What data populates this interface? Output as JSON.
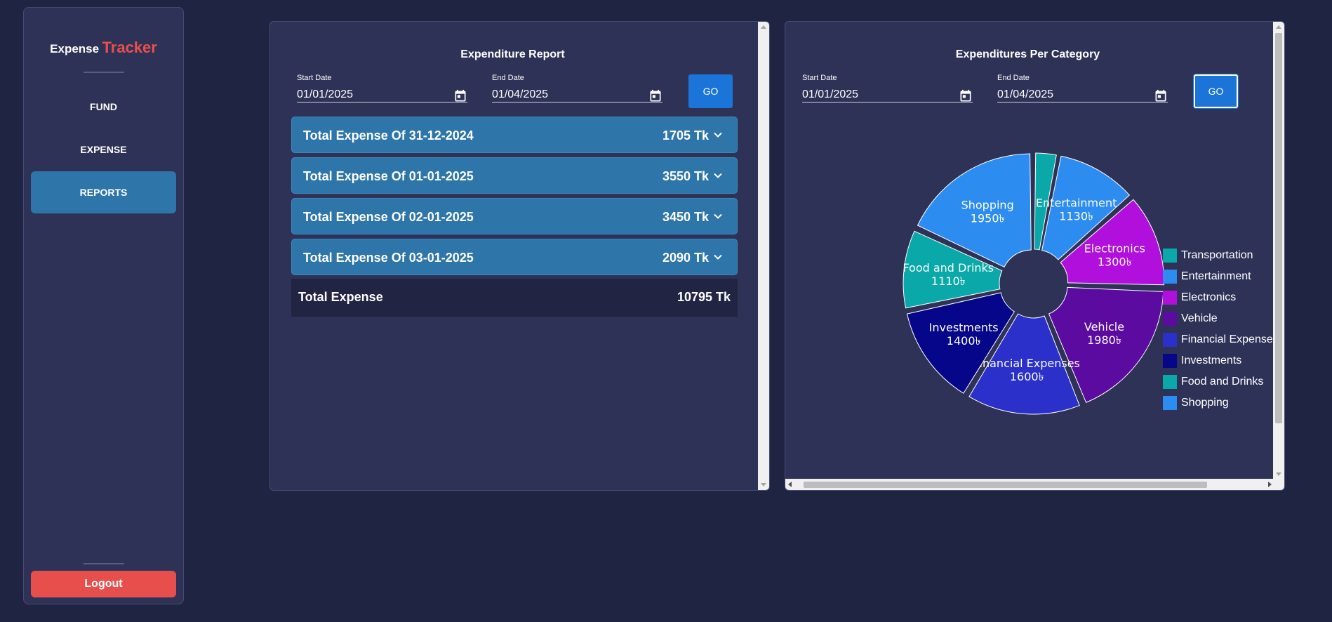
{
  "sidebar": {
    "brand_part1": "Expense",
    "brand_part2": "Tracker",
    "items": [
      {
        "label": "FUND"
      },
      {
        "label": "EXPENSE"
      },
      {
        "label": "REPORTS"
      }
    ],
    "active": "REPORTS",
    "logout_label": "Logout"
  },
  "report": {
    "title": "Expenditure Report",
    "start_label": "Start Date",
    "start_value": "01/01/2025",
    "end_label": "End Date",
    "end_value": "01/04/2025",
    "go_label": "GO",
    "rows": [
      {
        "title": "Total Expense Of 31-12-2024",
        "amount": "1705 Tk"
      },
      {
        "title": "Total Expense Of 01-01-2025",
        "amount": "3550 Tk"
      },
      {
        "title": "Total Expense Of 02-01-2025",
        "amount": "3450 Tk"
      },
      {
        "title": "Total Expense Of 03-01-2025",
        "amount": "2090 Tk"
      }
    ],
    "total_label": "Total Expense",
    "total_value": "10795 Tk"
  },
  "category": {
    "title": "Expenditures Per Category",
    "start_label": "Start Date",
    "start_value": "01/01/2025",
    "end_label": "End Date",
    "end_value": "01/04/2025",
    "go_label": "GO"
  },
  "chart_data": {
    "type": "pie",
    "variant": "doughnut",
    "currency_symbol": "৳",
    "categories": [
      "Transportation",
      "Entertainment",
      "Electronics",
      "Vehicle",
      "Financial Expenses",
      "Investments",
      "Food and Drinks",
      "Shopping"
    ],
    "values": [
      325,
      1130,
      1300,
      1980,
      1600,
      1400,
      1110,
      1950
    ],
    "slice_labels": [
      null,
      "1130৳",
      "1300৳",
      "1980৳",
      "1600৳",
      "1400৳",
      "1110৳",
      "1950৳"
    ],
    "colors": [
      "#0aa8a8",
      "#2d8cf0",
      "#b10fdc",
      "#5b0ba0",
      "#2a30c9",
      "#06068a",
      "#0aa8a8",
      "#2d8cf0"
    ],
    "legend_position": "right"
  }
}
